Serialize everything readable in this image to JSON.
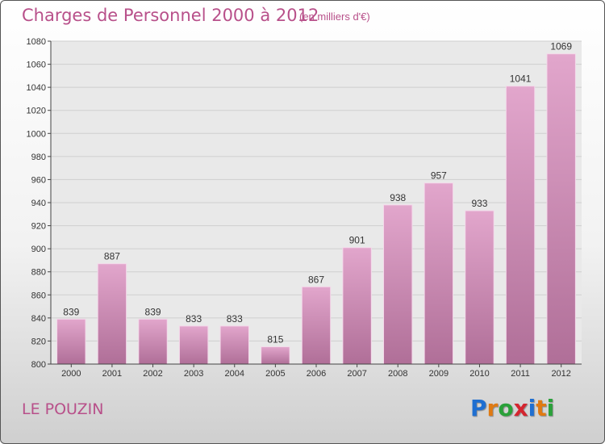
{
  "title": "Charges de Personnel 2000 à 2012",
  "subtitle": "(en milliers d'€)",
  "city": "LE POUZIN",
  "logo": {
    "letters": [
      "P",
      "r",
      "o",
      "x",
      "i",
      "t",
      "i"
    ],
    "colors": [
      "#1f6fd1",
      "#e07a12",
      "#2aa13a",
      "#d4252f",
      "#1f6fd1",
      "#e07a12",
      "#2aa13a"
    ]
  },
  "colors": {
    "bar_top": "#e2a6cc",
    "bar_bottom": "#b06f98",
    "text_accent": "#b8508a"
  },
  "chart_data": {
    "type": "bar",
    "categories": [
      "2000",
      "2001",
      "2002",
      "2003",
      "2004",
      "2005",
      "2006",
      "2007",
      "2008",
      "2009",
      "2010",
      "2011",
      "2012"
    ],
    "values": [
      839,
      887,
      839,
      833,
      833,
      815,
      867,
      901,
      938,
      957,
      933,
      1041,
      1069
    ],
    "value_labels": [
      "839",
      "887",
      "839",
      "833",
      "833",
      "815",
      "867",
      "901",
      "938",
      "957",
      "933",
      "1041",
      "1069"
    ],
    "ylim": [
      800,
      1080
    ],
    "yticks": [
      "800",
      "820",
      "840",
      "860",
      "880",
      "900",
      "920",
      "940",
      "960",
      "980",
      "1000",
      "1020",
      "1040",
      "1060",
      "1080"
    ],
    "ytick_values": [
      800,
      820,
      840,
      860,
      880,
      900,
      920,
      940,
      960,
      980,
      1000,
      1020,
      1040,
      1060,
      1080
    ],
    "grid": true,
    "xlabel": "",
    "ylabel": ""
  }
}
